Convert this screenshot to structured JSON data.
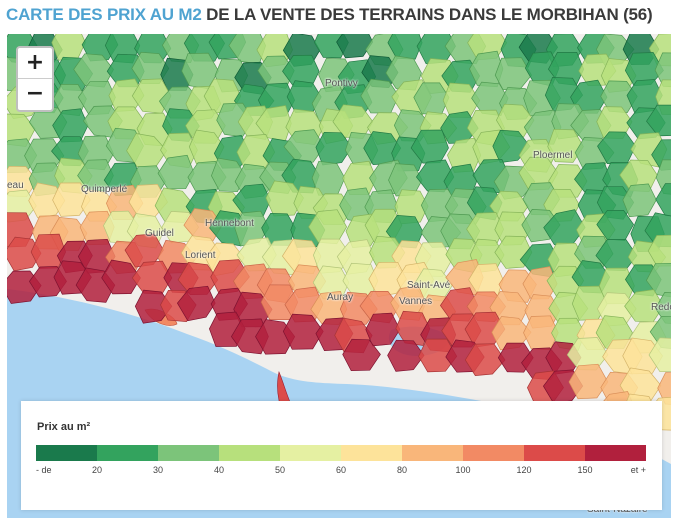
{
  "title": {
    "accent": "CARTE DES PRIX AU M2",
    "rest": " DE LA VENTE DES TERRAINS DANS LE MORBIHAN (56)"
  },
  "zoom": {
    "in_label": "+",
    "out_label": "−"
  },
  "places": [
    {
      "name": "Pontivy",
      "label": "Pontivy"
    },
    {
      "name": "Ploermel",
      "label": "Ploermel"
    },
    {
      "name": "Quimperle",
      "label": "Quimperlé"
    },
    {
      "name": "eau",
      "label": "eau"
    },
    {
      "name": "Guidel",
      "label": "Guidel"
    },
    {
      "name": "Hennebont",
      "label": "Hennebont"
    },
    {
      "name": "Lorient",
      "label": "Lorient"
    },
    {
      "name": "Auray",
      "label": "Auray"
    },
    {
      "name": "Vannes",
      "label": "Vannes"
    },
    {
      "name": "Saint-Ave",
      "label": "Saint-Avé"
    },
    {
      "name": "Redon",
      "label": "Redo"
    },
    {
      "name": "Saint-Nazaire",
      "label": "Saint-Nazaire"
    }
  ],
  "legend": {
    "title": "Prix au m²",
    "colors": [
      "#1a7a4c",
      "#33a35e",
      "#7cc47a",
      "#b7e07c",
      "#e5f0a2",
      "#fde39a",
      "#f9b67a",
      "#f28a64",
      "#dc4b49",
      "#b1203d"
    ],
    "ticks": [
      "- de",
      "20",
      "30",
      "40",
      "50",
      "60",
      "80",
      "100",
      "120",
      "150",
      "et +"
    ]
  }
}
